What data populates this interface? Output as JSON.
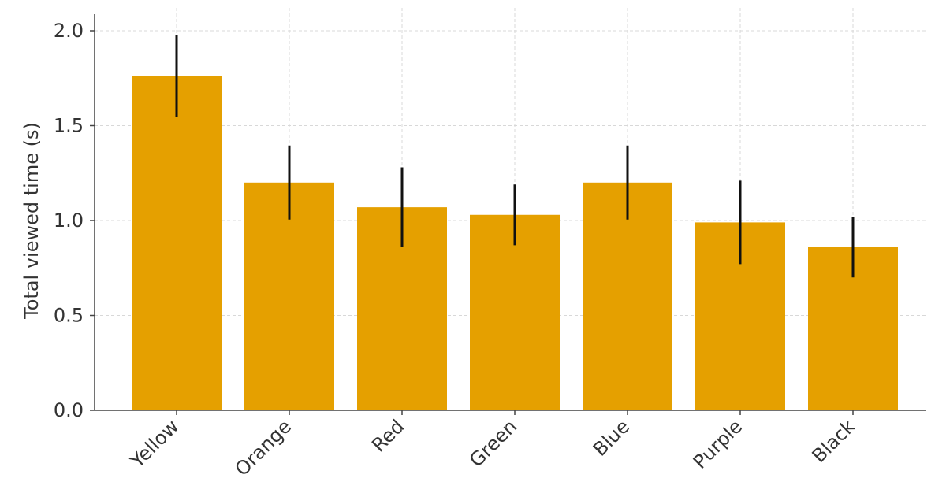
{
  "chart_data": {
    "type": "bar",
    "y_label": "Total viewed time (s)",
    "categories": [
      "Yellow",
      "Orange",
      "Red",
      "Green",
      "Blue",
      "Purple",
      "Black"
    ],
    "values": [
      1.76,
      1.2,
      1.07,
      1.03,
      1.2,
      0.99,
      0.86
    ],
    "errors": [
      0.215,
      0.195,
      0.21,
      0.16,
      0.195,
      0.22,
      0.16
    ],
    "color": "#e5a000",
    "ylim": [
      0,
      2.0
    ],
    "yticks": [
      {
        "value": 0,
        "label": "0.0"
      },
      {
        "value": 0.5,
        "label": "0.5"
      },
      {
        "value": 1,
        "label": "1.0"
      },
      1.5,
      {
        "value": 2,
        "label": "2.0"
      }
    ],
    "grid": true
  }
}
